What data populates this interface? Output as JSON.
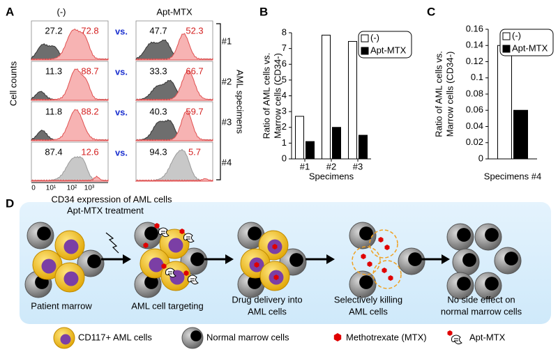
{
  "panel_a": {
    "letter": "A",
    "columns": [
      "(-)",
      "Apt-MTX"
    ],
    "vs": "vs.",
    "rows": [
      {
        "label": "#1",
        "left": [
          "27.2",
          "72.8"
        ],
        "right": [
          "47.7",
          "52.3"
        ]
      },
      {
        "label": "#2",
        "left": [
          "11.3",
          "88.7"
        ],
        "right": [
          "33.3",
          "66.7"
        ]
      },
      {
        "label": "#3",
        "left": [
          "11.8",
          "88.2"
        ],
        "right": [
          "40.3",
          "59.7"
        ]
      },
      {
        "label": "#4",
        "left": [
          "87.4",
          "12.6"
        ],
        "right": [
          "94.3",
          "5.7"
        ]
      }
    ],
    "x_tick_labels": [
      "0",
      "10¹",
      "10²",
      "10³"
    ],
    "xlabel": "CD34 expression of AML cells",
    "ylabel": "Cell counts",
    "group_label": "AML specimens"
  },
  "chart_data": [
    {
      "type": "bar",
      "letter": "B",
      "ylabel": [
        "Ratio of AML cells vs.",
        "Marrow cells (CD34-)"
      ],
      "xlabel": "Specimens",
      "categories": [
        "#1",
        "#2",
        "#3"
      ],
      "series": [
        {
          "name": "(-)",
          "color": "#ffffff",
          "values": [
            2.7,
            7.85,
            7.45
          ]
        },
        {
          "name": "Apt-MTX",
          "color": "#000000",
          "values": [
            1.1,
            2.0,
            1.5
          ]
        }
      ],
      "ylim": [
        0,
        8
      ],
      "yticks": [
        0,
        1,
        2,
        3,
        4,
        5,
        6,
        7,
        8
      ],
      "legend": "upper right"
    },
    {
      "type": "bar",
      "letter": "C",
      "ylabel": [
        "Ratio of AML cells vs.",
        "Marrow cells (CD34-)"
      ],
      "xlabel": "Specimens #4",
      "categories": [
        null
      ],
      "series": [
        {
          "name": "(-)",
          "color": "#ffffff",
          "values": [
            0.14
          ]
        },
        {
          "name": "Apt-MTX",
          "color": "#000000",
          "values": [
            0.06
          ]
        }
      ],
      "ylim": [
        0,
        0.16
      ],
      "yticks": [
        0,
        0.02,
        0.04,
        0.06,
        0.08,
        0.1,
        0.12,
        0.14,
        0.16
      ],
      "legend": "upper right"
    }
  ],
  "panel_d": {
    "letter": "D",
    "treatment": "Apt-MTX treatment",
    "steps": [
      [
        "Patient marrow"
      ],
      [
        "AML cell targeting"
      ],
      [
        "Drug delivery into",
        "AML cells"
      ],
      [
        "Selectively killing",
        "AML cells"
      ],
      [
        "No side effect on",
        "normal marrow cells"
      ]
    ],
    "legend": [
      "CD117+ AML cells",
      "Normal marrow cells",
      "Methotrexate (MTX)",
      "Apt-MTX"
    ]
  }
}
